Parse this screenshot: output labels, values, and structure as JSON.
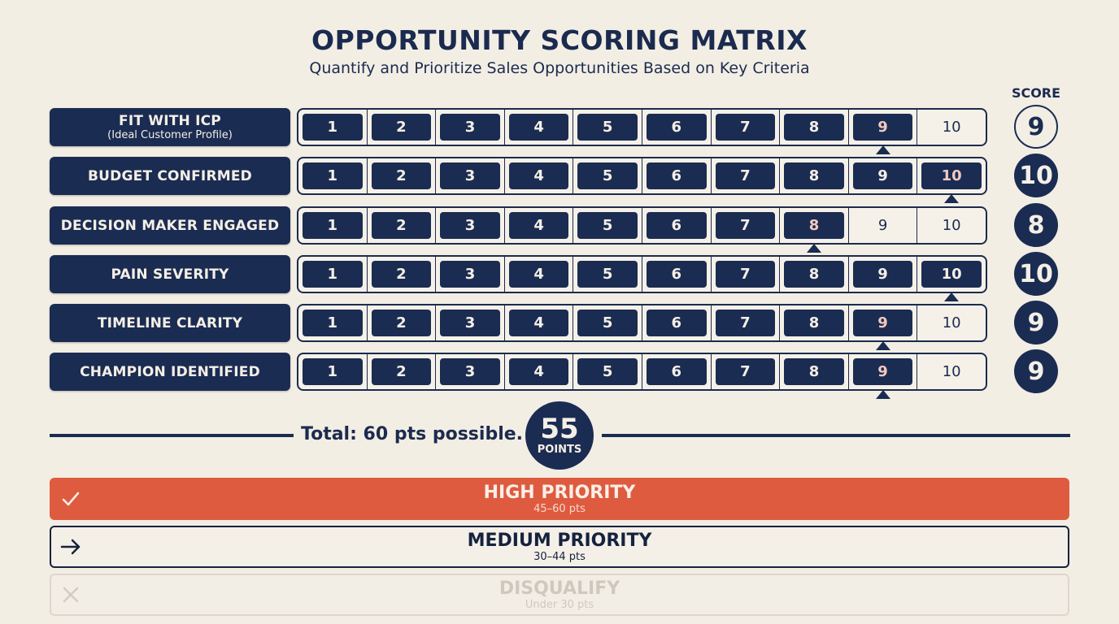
{
  "header": {
    "title": "OPPORTUNITY SCORING MATRIX",
    "subtitle": "Quantify and Prioritize Sales Opportunities Based on Key Criteria",
    "score_column_label": "SCORE"
  },
  "colors": {
    "navy": "#1b2c52",
    "background": "#f3eee4",
    "high_priority": "#df5b3f",
    "selected_digit_tint": "#f2c9c0",
    "disabled_gray": "#cfc8bd"
  },
  "scale": [
    "1",
    "2",
    "3",
    "4",
    "5",
    "6",
    "7",
    "8",
    "9",
    "10"
  ],
  "criteria": [
    {
      "label": "FIT WITH ICP",
      "sublabel": "(Ideal Customer Profile)",
      "score": "9",
      "score_style": "outline"
    },
    {
      "label": "BUDGET CONFIRMED",
      "sublabel": "",
      "score": "10",
      "score_style": "filled"
    },
    {
      "label": "DECISION MAKER ENGAGED",
      "sublabel": "",
      "score": "8",
      "score_style": "filled"
    },
    {
      "label": "PAIN SEVERITY",
      "sublabel": "",
      "score": "10",
      "score_style": "filled"
    },
    {
      "label": "TIMELINE CLARITY",
      "sublabel": "",
      "score": "9",
      "score_style": "filled"
    },
    {
      "label": "CHAMPION IDENTIFIED",
      "sublabel": "",
      "score": "9",
      "score_style": "filled"
    }
  ],
  "total": {
    "text": "Total: 60 pts possible.",
    "points": "55",
    "points_unit": "POINTS"
  },
  "priorities": [
    {
      "name": "HIGH PRIORITY",
      "range": "45–60 pts",
      "icon": "check-icon",
      "state": "active"
    },
    {
      "name": "MEDIUM PRIORITY",
      "range": "30–44 pts",
      "icon": "arrow-right-icon",
      "state": "outlined"
    },
    {
      "name": "DISQUALIFY",
      "range": "Under 30 pts",
      "icon": "x-icon",
      "state": "disabled"
    }
  ]
}
